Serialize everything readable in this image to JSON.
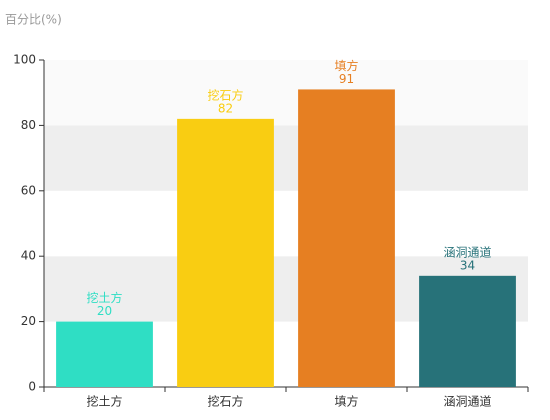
{
  "chart_data": {
    "type": "bar",
    "y_label": "百分比(%)",
    "categories": [
      "挖土方",
      "挖石方",
      "填方",
      "涵洞通道"
    ],
    "values": [
      20,
      82,
      91,
      34
    ],
    "colors": [
      "#2fdec4",
      "#f9cd12",
      "#e67f22",
      "#277279"
    ],
    "ylim": [
      0,
      100
    ],
    "yticks": [
      0,
      20,
      40,
      60,
      80,
      100
    ],
    "grid": true
  }
}
